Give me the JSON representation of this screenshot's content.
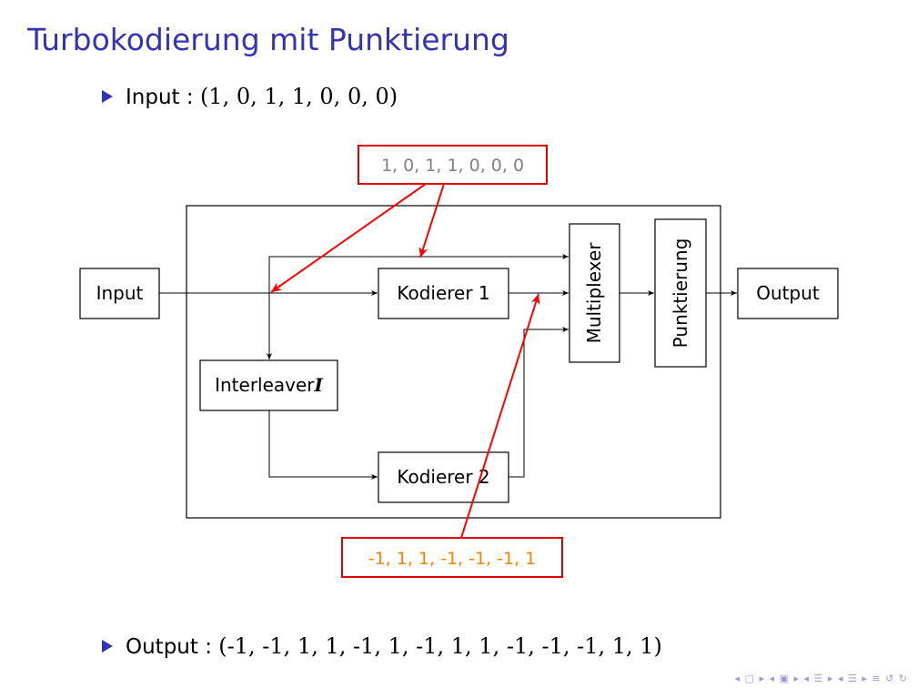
{
  "slide": {
    "title": "Turbokodierung mit Punktierung",
    "input_label": "Input :",
    "input_value": "(1, 0, 1, 1, 0, 0, 0)",
    "output_label": "Output :",
    "output_value": "(-1, -1, 1, 1, -1, 1, -1, 1, 1, -1, -1, -1, 1, 1)"
  },
  "diagram": {
    "input_block": "Input",
    "encoder1": "Kodierer 1",
    "encoder2": "Kodierer 2",
    "interleaver": "Interleaver",
    "interleaver_symbol": "I",
    "multiplexer": "Multiplexer",
    "puncturing": "Punktierung",
    "output_block": "Output",
    "annotation_top": "1, 0, 1, 1, 0, 0, 0",
    "annotation_bottom": "-1, 1, 1, -1, -1, -1, 1"
  },
  "colors": {
    "title": "#3333b3",
    "annotation_border": "#e00000",
    "annotation_top_text": "#808080",
    "annotation_bottom_text": "#ff7f00",
    "arrow_red": "#ff0000"
  },
  "navigation": {
    "icons": [
      "prev-frame-icon",
      "prev-section-icon",
      "prev-subsection-icon",
      "next-subsection-icon",
      "align-icon",
      "search-icon"
    ]
  }
}
